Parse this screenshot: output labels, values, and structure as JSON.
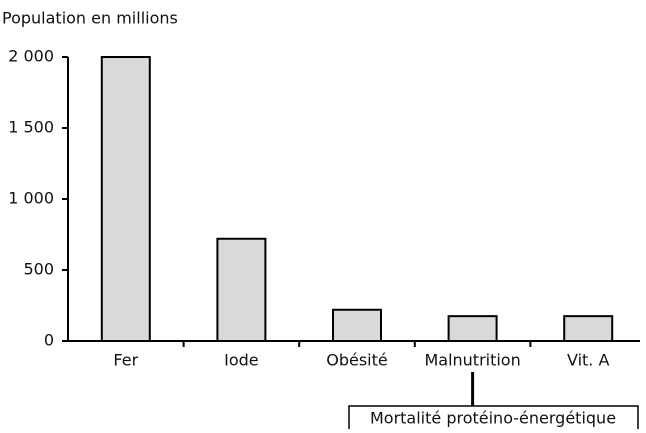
{
  "chart_data": {
    "type": "bar",
    "y_label": "Population en millions",
    "categories": [
      "Fer",
      "Iode",
      "Obésité",
      "Malnutrition",
      "Vit. A"
    ],
    "values": [
      2000,
      720,
      220,
      175,
      175
    ],
    "color": "#d9d9d9",
    "ylim": [
      0,
      2000
    ],
    "yticks": [
      0,
      500,
      {
        "value": 1000,
        "label": "1 000"
      },
      {
        "value": 1500,
        "label": "1 500"
      },
      {
        "value": 2000,
        "label": "2 000"
      }
    ],
    "annotation": "Mortalité protéino-énergétique"
  }
}
